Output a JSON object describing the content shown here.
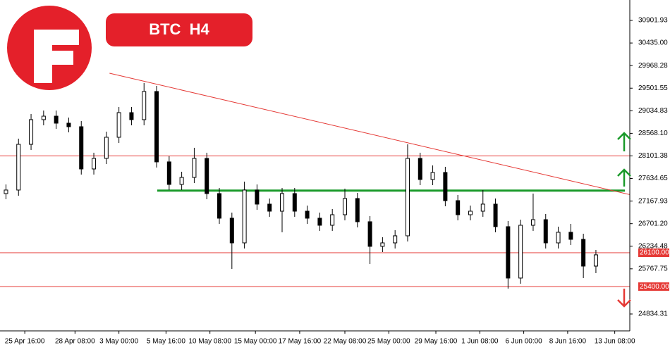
{
  "chart_data": {
    "type": "candlestick",
    "title": "BTC  H4",
    "xlim": [
      -7.9,
      192.8
    ],
    "ylim": [
      24485,
      31324
    ],
    "xticks": [
      {
        "value": 0,
        "label": "25 Apr 16:00"
      },
      {
        "value": 16,
        "label": "28 Apr 08:00"
      },
      {
        "value": 30,
        "label": "3 May 00:00"
      },
      {
        "value": 45,
        "label": "5 May 16:00"
      },
      {
        "value": 59,
        "label": "10 May 08:00"
      },
      {
        "value": 73.5,
        "label": "15 May 00:00"
      },
      {
        "value": 87.6,
        "label": "17 May 16:00"
      },
      {
        "value": 102,
        "label": "22 May 08:00"
      },
      {
        "value": 116,
        "label": "25 May 00:00"
      },
      {
        "value": 131,
        "label": "29 May 16:00"
      },
      {
        "value": 145,
        "label": "1 Jun 08:00"
      },
      {
        "value": 159,
        "label": "6 Jun 00:00"
      },
      {
        "value": 173,
        "label": "8 Jun 16:00"
      },
      {
        "value": 188,
        "label": "13 Jun 08:00"
      }
    ],
    "yticks": [
      {
        "value": 30901.93,
        "label": "30901.93"
      },
      {
        "value": 30435.0,
        "label": "30435.00"
      },
      {
        "value": 29968.28,
        "label": "29968.28"
      },
      {
        "value": 29501.55,
        "label": "29501.55"
      },
      {
        "value": 29034.83,
        "label": "29034.83"
      },
      {
        "value": 28568.1,
        "label": "28568.10"
      },
      {
        "value": 28101.38,
        "label": "28101.38"
      },
      {
        "value": 27634.65,
        "label": "27634.65"
      },
      {
        "value": 27167.93,
        "label": "27167.93"
      },
      {
        "value": 26701.2,
        "label": "26701.20"
      },
      {
        "value": 26234.48,
        "label": "26234.48"
      },
      {
        "value": 25767.75,
        "label": "25767.75"
      },
      {
        "value": 24834.31,
        "label": "24834.31"
      }
    ],
    "x": [
      -6,
      -2,
      2,
      6,
      10,
      14,
      18,
      22,
      26,
      30,
      34,
      38,
      42,
      46,
      50,
      54,
      58,
      62,
      66,
      70,
      74,
      78,
      82,
      86,
      90,
      94,
      98,
      102,
      106,
      110,
      114,
      118,
      122,
      126,
      130,
      134,
      138,
      142,
      146,
      150,
      154,
      158,
      162,
      166,
      170,
      174,
      178,
      182
    ],
    "open": [
      27323,
      27396,
      28341,
      28851,
      28923,
      28778,
      28705,
      27832,
      28050,
      28487,
      28996,
      28851,
      29433,
      27978,
      27512,
      27657,
      28050,
      27323,
      26814,
      26304,
      27396,
      27105,
      26959,
      27323,
      26959,
      26814,
      26668,
      26886,
      27221,
      26741,
      26232,
      26304,
      26450,
      28050,
      27614,
      27759,
      27177,
      26886,
      26959,
      27105,
      26639,
      25577,
      26668,
      26784,
      26304,
      26523,
      26377,
      25824
    ],
    "high": [
      27512,
      28458,
      28967,
      29040,
      29040,
      28894,
      28821,
      28167,
      28603,
      29112,
      29112,
      29607,
      29549,
      28094,
      27774,
      28269,
      28167,
      27439,
      26930,
      27570,
      27512,
      27221,
      27439,
      27439,
      27075,
      26930,
      27003,
      27425,
      27337,
      26857,
      26421,
      26566,
      28341,
      28167,
      27905,
      27876,
      27294,
      27075,
      27396,
      27221,
      26755,
      26784,
      27323,
      26901,
      26639,
      26697,
      26493,
      26159
    ],
    "low": [
      27206,
      27279,
      28225,
      28734,
      28661,
      28589,
      27716,
      27716,
      27934,
      28370,
      28734,
      28734,
      27861,
      27396,
      27396,
      27541,
      27206,
      26697,
      25766,
      26188,
      26988,
      26843,
      26523,
      26843,
      26697,
      26552,
      26552,
      26770,
      26624,
      25868,
      26115,
      26188,
      26333,
      27497,
      27497,
      27061,
      26770,
      26770,
      26843,
      26523,
      25359,
      25460,
      26552,
      26188,
      26188,
      26261,
      25577,
      25679
    ],
    "close": [
      27396,
      28341,
      28851,
      28923,
      28778,
      28705,
      27832,
      28050,
      28487,
      28996,
      28851,
      29433,
      27978,
      27512,
      27657,
      28050,
      27323,
      26814,
      26304,
      27396,
      27105,
      26959,
      27323,
      26959,
      26814,
      26668,
      26886,
      27221,
      26741,
      26232,
      26304,
      26450,
      28050,
      27614,
      27759,
      27177,
      26886,
      26959,
      27105,
      26639,
      25577,
      26668,
      26784,
      26304,
      26523,
      26377,
      25824,
      26057
    ],
    "up_color": "#ffffff",
    "down_color": "#000000",
    "levels": [
      {
        "value": 28101.38,
        "color": "#e53935"
      },
      {
        "value": 26100,
        "label": "26100.00",
        "color": "#e53935"
      },
      {
        "value": 25400,
        "label": "25400.00",
        "color": "#e53935"
      }
    ],
    "support": {
      "value": 27385,
      "from": 42.2,
      "color": "#1a9a2a"
    },
    "trendline": {
      "x": [
        27,
        192.8
      ],
      "y": [
        29811,
        27302
      ],
      "color": "#e53935"
    }
  }
}
